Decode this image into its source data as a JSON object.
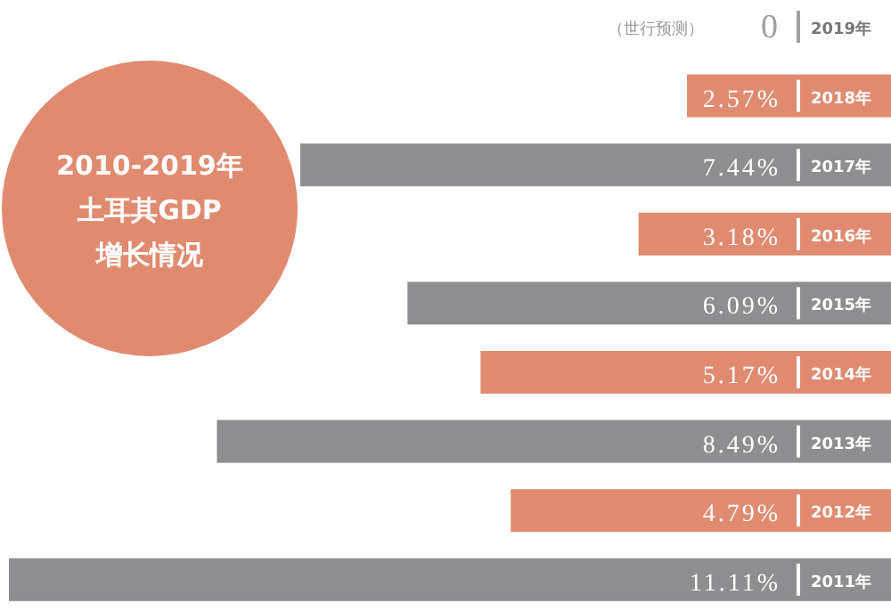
{
  "chart_data": {
    "type": "bar",
    "orientation": "horizontal",
    "title": "2010-2019年",
    "subtitle": "土耳其GDP增长情况",
    "categories": [
      "2019年",
      "2018年",
      "2017年",
      "2016年",
      "2015年",
      "2014年",
      "2013年",
      "2012年",
      "2011年"
    ],
    "values": [
      0,
      2.57,
      7.44,
      3.18,
      6.09,
      5.17,
      8.49,
      4.79,
      11.11
    ],
    "colors": [
      "#8e8e90",
      "#e08b70",
      "#8e8e90",
      "#e08b70",
      "#8e8e90",
      "#e08b70",
      "#8e8e90",
      "#e08b70",
      "#8e8e90"
    ],
    "value_labels": [
      "0",
      "2.57%",
      "7.44%",
      "3.18%",
      "6.09%",
      "5.17%",
      "8.49%",
      "4.79%",
      "11.11%"
    ],
    "annotations": [
      "（世行预测）"
    ]
  }
}
